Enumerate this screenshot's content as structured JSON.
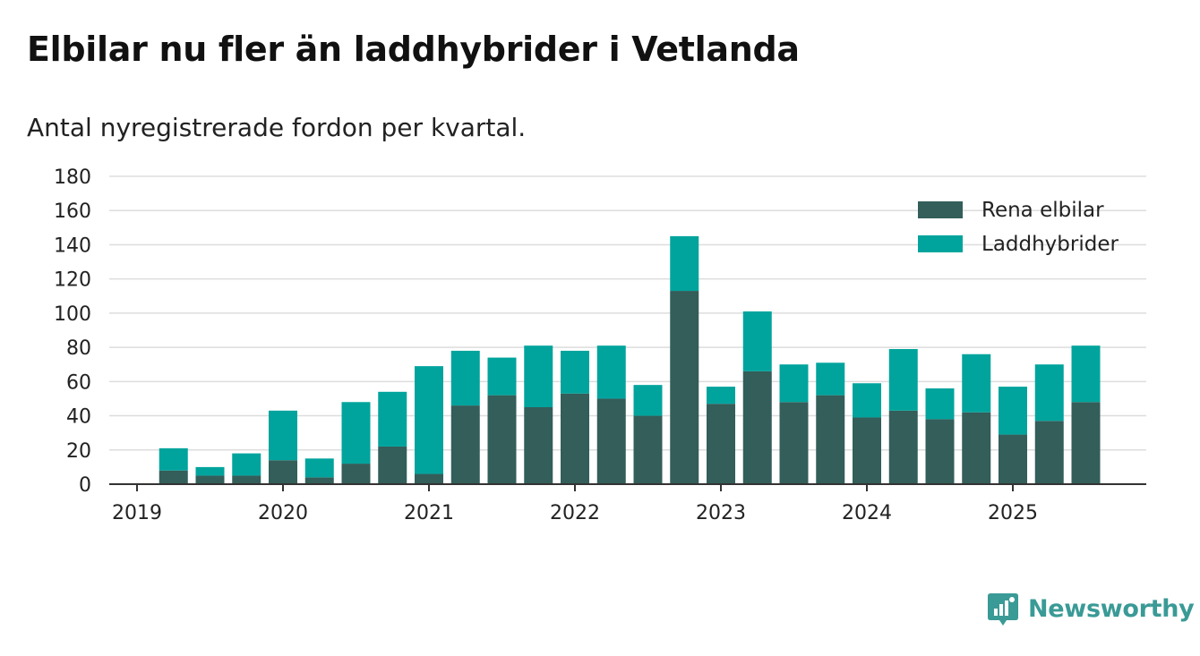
{
  "header": {
    "title": "Elbilar nu fler än laddhybrider i Vetlanda",
    "subtitle": "Antal nyregistrerade fordon per kvartal."
  },
  "brand": {
    "name": "Newsworthy",
    "icon": "newsworthy-logo-icon",
    "color": "#3a9a96"
  },
  "colors": {
    "elbilar": "#335e5a",
    "laddhybrider": "#00a49d",
    "grid": "#dddddd",
    "axis": "#333333"
  },
  "chart_data": {
    "type": "bar",
    "stacked": true,
    "title": "Elbilar nu fler än laddhybrider i Vetlanda",
    "subtitle": "Antal nyregistrerade fordon per kvartal.",
    "xlabel": "",
    "ylabel": "",
    "ylim": [
      0,
      180
    ],
    "yticks": [
      "0",
      "20",
      "40",
      "60",
      "80",
      "100",
      "120",
      "140",
      "160",
      "180"
    ],
    "xticks": [
      "2019",
      "2020",
      "2021",
      "2022",
      "2023",
      "2024",
      "2025"
    ],
    "grid": true,
    "legend_position": "top-right",
    "categories": [
      "2019 Q2",
      "2019 Q3",
      "2019 Q4",
      "2020 Q1",
      "2020 Q2",
      "2020 Q3",
      "2020 Q4",
      "2021 Q1",
      "2021 Q2",
      "2021 Q3",
      "2021 Q4",
      "2022 Q1",
      "2022 Q2",
      "2022 Q3",
      "2022 Q4",
      "2023 Q1",
      "2023 Q2",
      "2023 Q3",
      "2023 Q4",
      "2024 Q1",
      "2024 Q2",
      "2024 Q3",
      "2024 Q4",
      "2025 Q1",
      "2025 Q2",
      "2025 Q3"
    ],
    "series": [
      {
        "name": "Rena elbilar",
        "values": [
          8,
          5,
          5,
          14,
          4,
          12,
          22,
          6,
          46,
          52,
          45,
          53,
          50,
          40,
          113,
          47,
          66,
          48,
          52,
          39,
          43,
          38,
          42,
          29,
          37,
          48
        ]
      },
      {
        "name": "Laddhybrider",
        "values": [
          13,
          5,
          13,
          29,
          11,
          36,
          32,
          63,
          32,
          22,
          36,
          25,
          31,
          18,
          32,
          10,
          35,
          22,
          19,
          20,
          36,
          18,
          34,
          28,
          33,
          33
        ]
      }
    ]
  }
}
